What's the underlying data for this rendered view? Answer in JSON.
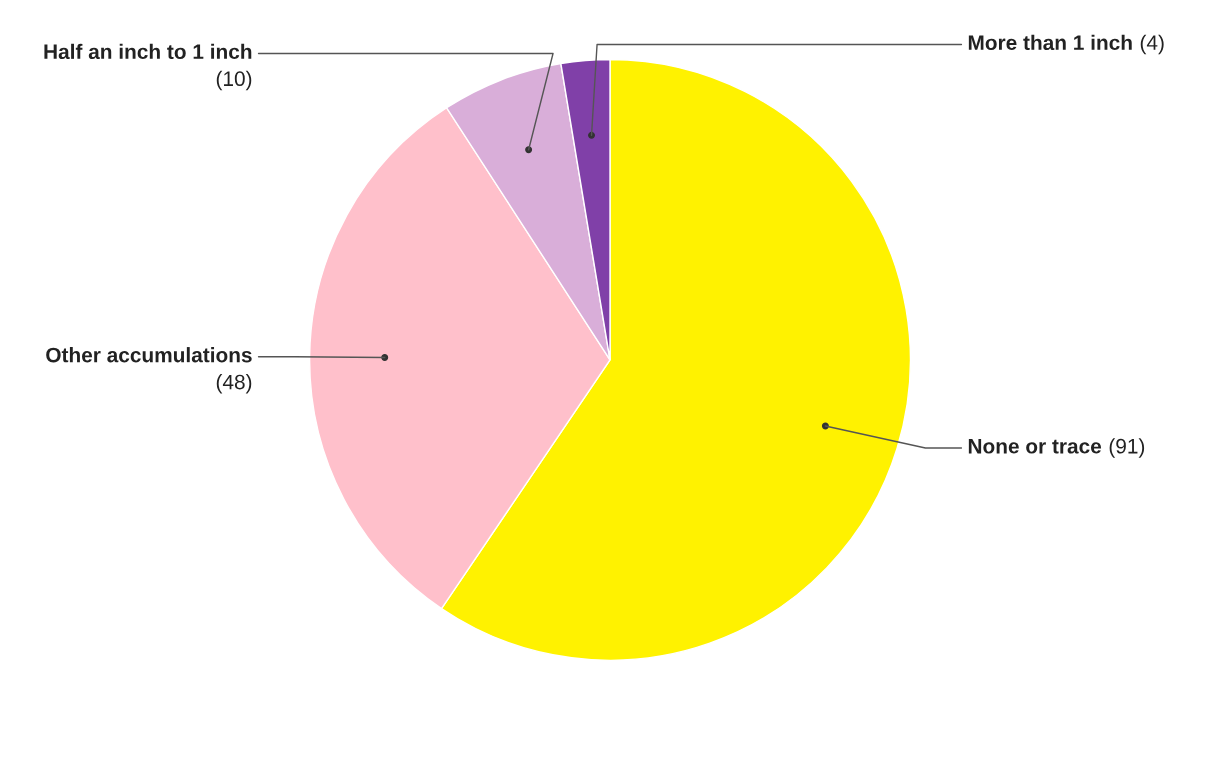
{
  "chart_data": {
    "type": "pie",
    "categories": [
      "None or trace",
      "Other accumulations",
      "Half an inch to 1 inch",
      "More than 1 inch"
    ],
    "values": [
      91,
      48,
      10,
      4
    ],
    "colors": [
      "#fff200",
      "#ffc0cb",
      "#d9aed9",
      "#8040a8"
    ],
    "value_labels": [
      "(91)",
      "(48)",
      "(10)",
      "(4)"
    ]
  }
}
